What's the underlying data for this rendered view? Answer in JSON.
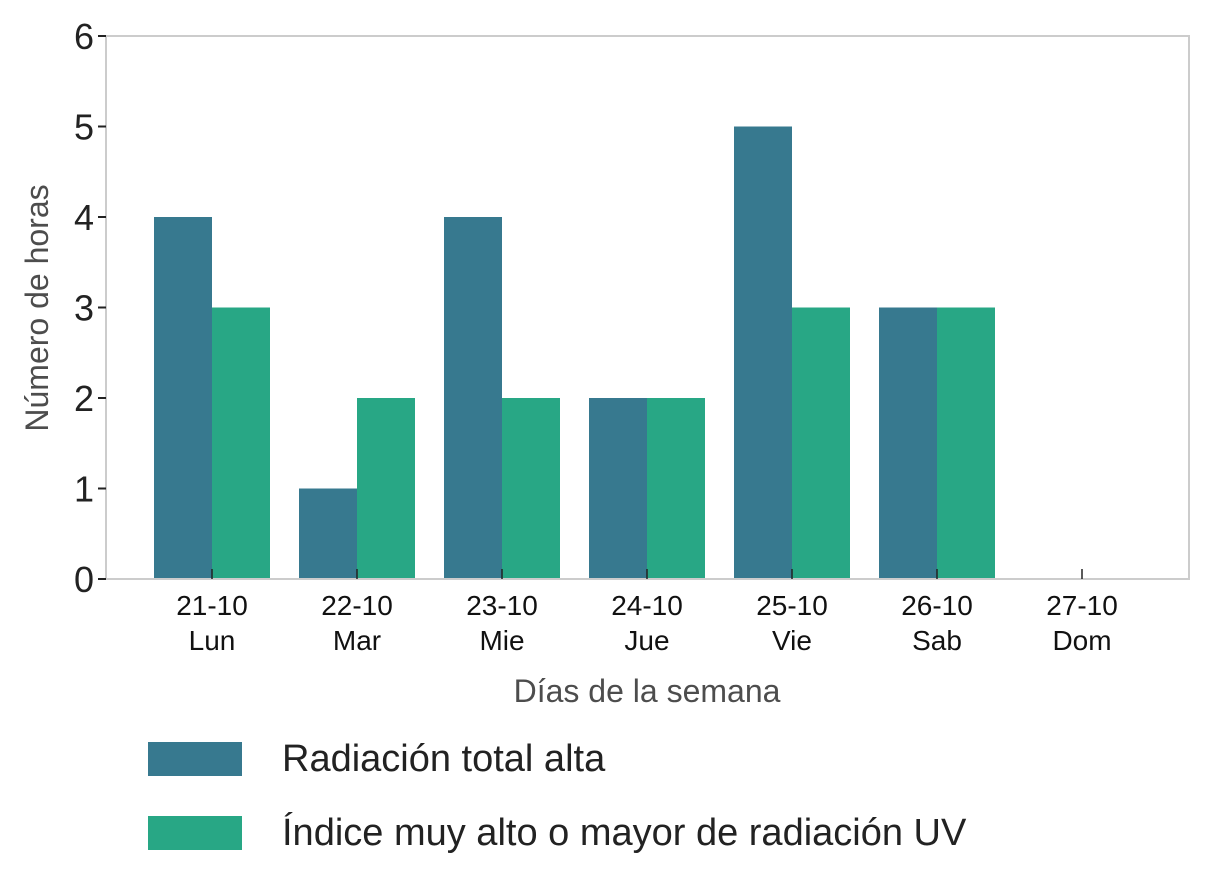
{
  "chart_data": {
    "type": "bar",
    "categories": [
      "21-10\nLun",
      "22-10\nMar",
      "23-10\nMie",
      "24-10\nJue",
      "25-10\nVie",
      "26-10\nSab",
      "27-10\nDom"
    ],
    "series": [
      {
        "name": "Radiación total alta",
        "color": "#37798f",
        "values": [
          4,
          1,
          4,
          2,
          5,
          3,
          0
        ]
      },
      {
        "name": "Índice muy alto o mayor de radiación UV",
        "color": "#28a785",
        "values": [
          3,
          2,
          2,
          2,
          3,
          3,
          0
        ]
      }
    ],
    "xlabel": "Días de la semana",
    "ylabel": "Número de horas",
    "ylim": [
      0,
      6
    ],
    "yticks": [
      0,
      1,
      2,
      3,
      4,
      5,
      6
    ],
    "grid": false,
    "legend_position": "bottom"
  }
}
